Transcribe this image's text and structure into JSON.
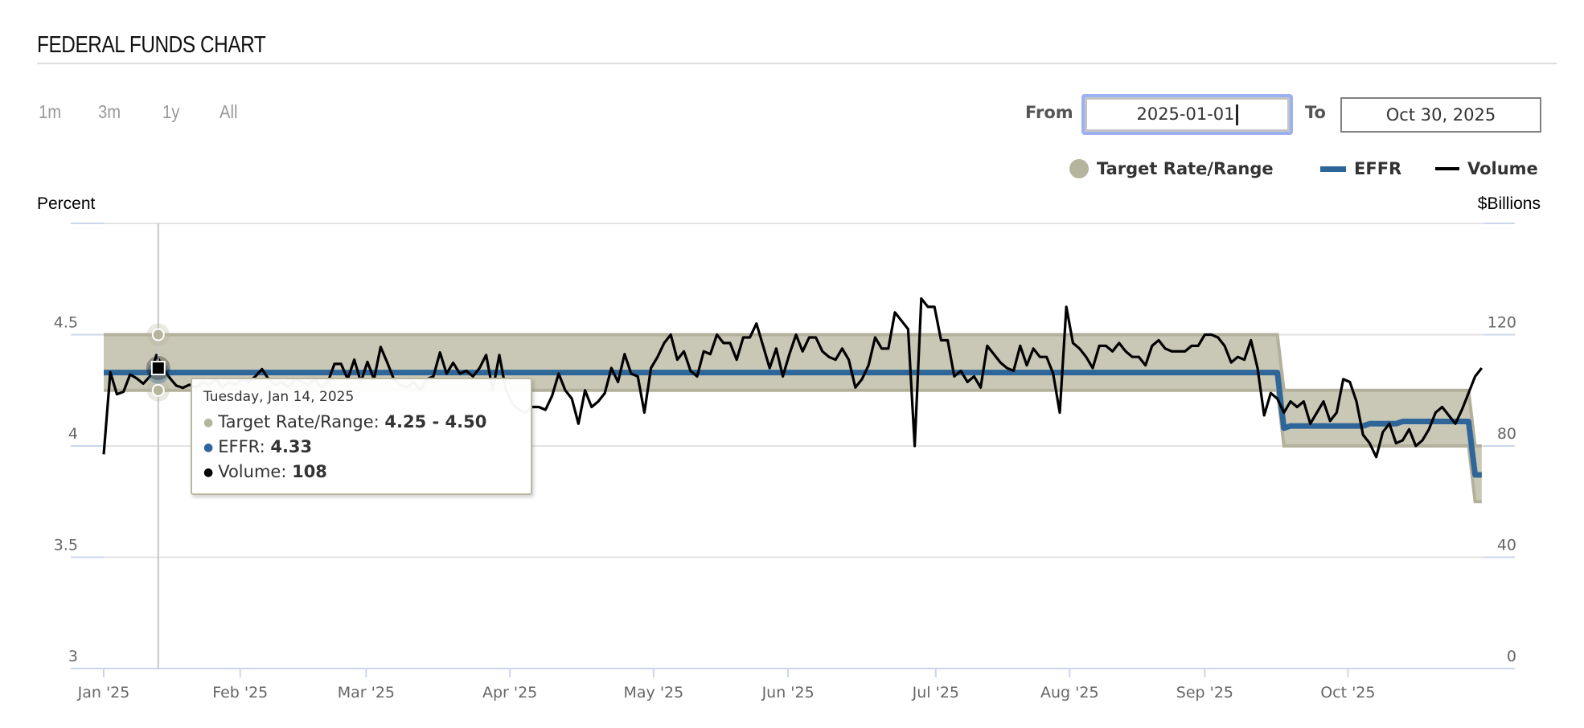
{
  "header": {
    "title": "FEDERAL FUNDS CHART"
  },
  "range_selector": {
    "buttons": [
      "1m",
      "3m",
      "1y",
      "All"
    ]
  },
  "date_range": {
    "from_label": "From",
    "from_value": "2025-01-01",
    "to_label": "To",
    "to_value": "Oct 30, 2025"
  },
  "legend": {
    "items": [
      {
        "label": "Target Rate/Range",
        "color": "#b5b49c",
        "icon": "circle"
      },
      {
        "label": "EFFR",
        "color": "#2f6699",
        "icon": "line"
      },
      {
        "label": "Volume",
        "color": "#000000",
        "icon": "line"
      }
    ]
  },
  "tooltip": {
    "date": "Tuesday, Jan 14, 2025",
    "rows": [
      {
        "label": "Target Rate/Range: ",
        "value": "4.25 - 4.50",
        "color": "#b5b49c"
      },
      {
        "label": "EFFR: ",
        "value": "4.33",
        "color": "#2f6699"
      },
      {
        "label": "Volume: ",
        "value": "108",
        "color": "#000000"
      }
    ],
    "hover_index": 9
  },
  "chart_data": {
    "type": "line",
    "title": "FEDERAL FUNDS CHART",
    "ylabel_left": "Percent",
    "ylabel_right": "$Billions",
    "y_left": {
      "range": [
        3,
        5
      ],
      "ticks": [
        3,
        3.5,
        4,
        4.5,
        5
      ],
      "tick_labels": [
        "3",
        "3.5",
        "4",
        "4.5",
        ""
      ]
    },
    "y_right": {
      "range": [
        0,
        160
      ],
      "ticks": [
        0,
        40,
        80,
        120
      ],
      "tick_labels": [
        "0",
        "40",
        "80",
        "120"
      ]
    },
    "x_axis": {
      "type": "ordinal business days",
      "points": 210,
      "ticks": [
        {
          "label": "Jan '25",
          "index": 0
        },
        {
          "label": "Feb '25",
          "index": 20.7
        },
        {
          "label": "Mar '25",
          "index": 39.8
        },
        {
          "label": "Apr '25",
          "index": 61.6
        },
        {
          "label": "May '25",
          "index": 83.4
        },
        {
          "label": "Jun '25",
          "index": 103.8
        },
        {
          "label": "Jul '25",
          "index": 126.2
        },
        {
          "label": "Aug '25",
          "index": 146.5
        },
        {
          "label": "Sep '25",
          "index": 167
        },
        {
          "label": "Oct '25",
          "index": 188.7
        }
      ]
    },
    "grid": true,
    "legend_position": "top-right",
    "series": [
      {
        "name": "Target Rate/Range",
        "type": "arearange",
        "color": "#c9c8b6",
        "segments": [
          {
            "from_index": 0,
            "to_index": 178,
            "low": 4.25,
            "high": 4.5
          },
          {
            "from_index": 179,
            "to_index": 207,
            "low": 4.0,
            "high": 4.25
          },
          {
            "from_index": 208,
            "to_index": 209,
            "low": 3.75,
            "high": 4.0
          }
        ]
      },
      {
        "name": "EFFR",
        "type": "line",
        "color": "#2f6699",
        "segments": [
          {
            "from_index": 0,
            "to_index": 178,
            "value": 4.33
          },
          {
            "from_index": 179,
            "to_index": 179,
            "value": 4.08
          },
          {
            "from_index": 180,
            "to_index": 191,
            "value": 4.09
          },
          {
            "from_index": 192,
            "to_index": 196,
            "value": 4.1
          },
          {
            "from_index": 197,
            "to_index": 207,
            "value": 4.11
          },
          {
            "from_index": 208,
            "to_index": 209,
            "value": 3.87
          }
        ]
      },
      {
        "name": "Volume",
        "type": "line",
        "axis": "right",
        "color": "#000000",
        "values": [
          77,
          106.5,
          98.6,
          99.5,
          105.7,
          104.3,
          102.4,
          105,
          112.7,
          108,
          104.5,
          101.7,
          100.9,
          102,
          101,
          103,
          102,
          104,
          101,
          103,
          102,
          104,
          103,
          105,
          107.6,
          104,
          102,
          103,
          101,
          104,
          103,
          102,
          104,
          101,
          103,
          109.5,
          109.5,
          104,
          111,
          103,
          110.2,
          104,
          115.6,
          110,
          104,
          102,
          101,
          103,
          100,
          104,
          105,
          113.6,
          106,
          109.9,
          106,
          107,
          105,
          108,
          112.7,
          100,
          112.7,
          100,
          95,
          93,
          92,
          94,
          94,
          93,
          98,
          106,
          100,
          97,
          88,
          100,
          94,
          96,
          99,
          108,
          103,
          113,
          106,
          105,
          92,
          108,
          112,
          117,
          120,
          111,
          114,
          107,
          105,
          114,
          113,
          120,
          117,
          117,
          111,
          119,
          119,
          124,
          116,
          108,
          115,
          105,
          113,
          120,
          114,
          119,
          119,
          114,
          112,
          111,
          115,
          111,
          101,
          104,
          109,
          119,
          115,
          115,
          128,
          125,
          122,
          80,
          133,
          130,
          130,
          118,
          118,
          105,
          107,
          103,
          105,
          101,
          116,
          113,
          110,
          108,
          107,
          116,
          109,
          115,
          112,
          112,
          106,
          92,
          130,
          117,
          115,
          112,
          108,
          116,
          116,
          114,
          117,
          114,
          112,
          112,
          109,
          116,
          118,
          115,
          114,
          114,
          114,
          116,
          116,
          120,
          120,
          119,
          116,
          110,
          112,
          111,
          118,
          108,
          91,
          99,
          97,
          92,
          96,
          94,
          96,
          88,
          92,
          96,
          89,
          92,
          104,
          103,
          96,
          84,
          81,
          76,
          85,
          88,
          81,
          82,
          86,
          80,
          82,
          86,
          92,
          94,
          91,
          88,
          93,
          99,
          105,
          108
        ]
      }
    ]
  }
}
